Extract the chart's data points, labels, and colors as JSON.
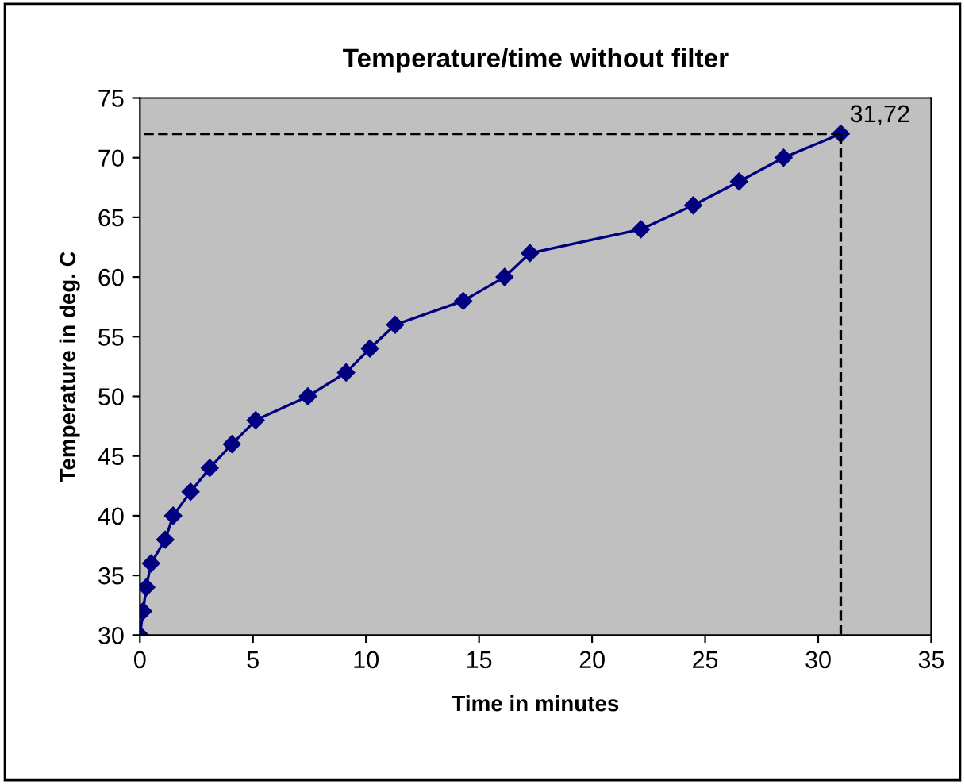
{
  "chart_data": {
    "type": "line",
    "title": "Temperature/time without filter",
    "xlabel": "Time in minutes",
    "ylabel": "Temperature in deg. C",
    "x": [
      0,
      0.14,
      0.28,
      0.49,
      1.12,
      1.47,
      2.24,
      3.09,
      4.07,
      5.12,
      7.43,
      9.12,
      10.17,
      11.29,
      14.3,
      16.13,
      17.25,
      22.16,
      24.47,
      26.5,
      28.47,
      31
    ],
    "series": [
      {
        "color": "#000080",
        "values": [
          30,
          32,
          34,
          36,
          38,
          40,
          42,
          44,
          46,
          48,
          50,
          52,
          54,
          56,
          58,
          60,
          62,
          64,
          66,
          68,
          70,
          72
        ]
      }
    ],
    "ref_lines": [
      {
        "axis": "y",
        "value": 72,
        "color": "#000000",
        "line_style": "dashed"
      },
      {
        "axis": "x",
        "value": 31,
        "color": "#000000",
        "line_style": "dashed"
      }
    ],
    "annotations": [
      {
        "text": "31,72",
        "x": 31,
        "y": 72
      }
    ],
    "xlim": [
      0,
      35
    ],
    "xticks": [
      0,
      5,
      10,
      15,
      20,
      25,
      30,
      35
    ],
    "ylim": [
      30,
      75
    ],
    "yticks": [
      30,
      35,
      40,
      45,
      50,
      55,
      60,
      65,
      70,
      75
    ],
    "grid": false,
    "legend": false,
    "marker": "diamond",
    "line_style": "solid"
  }
}
